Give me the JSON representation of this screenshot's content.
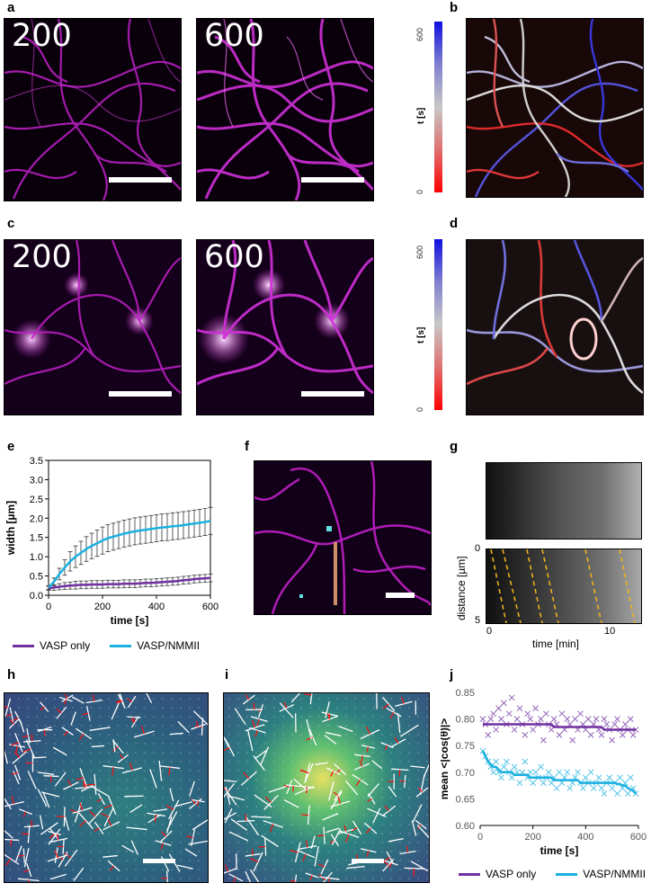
{
  "panels": {
    "a": {
      "label": "a",
      "left_time": "200",
      "right_time": "600"
    },
    "b": {
      "label": "b",
      "cbar_max": "600",
      "cbar_min": "0",
      "cbar_label": "t [s]"
    },
    "c": {
      "label": "c",
      "left_time": "200",
      "right_time": "600"
    },
    "d": {
      "label": "d",
      "cbar_max": "600",
      "cbar_min": "0",
      "cbar_label": "t [s]"
    },
    "e": {
      "label": "e"
    },
    "f": {
      "label": "f"
    },
    "g": {
      "label": "g",
      "ylabel": "distance [µm]",
      "xlabel": "time [min]",
      "yticks": [
        "0",
        "5"
      ],
      "xticks": [
        "0",
        "10"
      ]
    },
    "h": {
      "label": "h"
    },
    "i": {
      "label": "i"
    },
    "j": {
      "label": "j"
    }
  },
  "legend_e": [
    {
      "name": "VASP only",
      "color": "#7030a0"
    },
    {
      "name": "VASP/NMMII",
      "color": "#1ab0e0"
    }
  ],
  "legend_j": [
    {
      "name": "VASP only",
      "color": "#7030a0"
    },
    {
      "name": "VASP/NMMII",
      "color": "#1ab0e0"
    }
  ],
  "chart_data": [
    {
      "id": "e",
      "type": "line",
      "xlabel": "time [s]",
      "ylabel": "width [µm]",
      "xlim": [
        0,
        600
      ],
      "ylim": [
        0,
        3.5
      ],
      "xticks": [
        0,
        200,
        400,
        600
      ],
      "yticks": [
        0.0,
        0.5,
        1.0,
        1.5,
        2.0,
        2.5,
        3.0,
        3.5
      ],
      "ytick_labels": [
        "0.0",
        "0.5",
        "1.0",
        "1.5",
        "2.0",
        "2.5",
        "3.0",
        "3.5"
      ],
      "series": [
        {
          "name": "VASP only",
          "color": "#7030a0",
          "x": [
            0,
            20,
            40,
            60,
            80,
            100,
            120,
            140,
            160,
            180,
            200,
            220,
            240,
            260,
            280,
            300,
            320,
            340,
            360,
            380,
            400,
            420,
            440,
            460,
            480,
            500,
            520,
            540,
            560,
            580,
            600
          ],
          "y": [
            0.18,
            0.2,
            0.22,
            0.24,
            0.25,
            0.26,
            0.27,
            0.27,
            0.28,
            0.28,
            0.28,
            0.29,
            0.29,
            0.29,
            0.3,
            0.3,
            0.3,
            0.31,
            0.32,
            0.32,
            0.33,
            0.34,
            0.35,
            0.36,
            0.37,
            0.39,
            0.4,
            0.42,
            0.43,
            0.44,
            0.45
          ],
          "err": [
            0.05,
            0.07,
            0.08,
            0.09,
            0.09,
            0.1,
            0.1,
            0.1,
            0.1,
            0.1,
            0.1,
            0.1,
            0.1,
            0.1,
            0.1,
            0.1,
            0.1,
            0.1,
            0.1,
            0.1,
            0.1,
            0.1,
            0.1,
            0.1,
            0.1,
            0.1,
            0.1,
            0.1,
            0.1,
            0.1,
            0.1
          ]
        },
        {
          "name": "VASP/NMMII",
          "color": "#1ab0e0",
          "x": [
            0,
            20,
            40,
            60,
            80,
            100,
            120,
            140,
            160,
            180,
            200,
            220,
            240,
            260,
            280,
            300,
            320,
            340,
            360,
            380,
            400,
            420,
            440,
            460,
            480,
            500,
            520,
            540,
            560,
            580,
            600
          ],
          "y": [
            0.2,
            0.35,
            0.55,
            0.72,
            0.88,
            1.0,
            1.1,
            1.2,
            1.28,
            1.35,
            1.42,
            1.48,
            1.52,
            1.56,
            1.6,
            1.63,
            1.66,
            1.68,
            1.7,
            1.72,
            1.74,
            1.76,
            1.77,
            1.79,
            1.8,
            1.82,
            1.84,
            1.86,
            1.88,
            1.9,
            1.93
          ],
          "err": [
            0.05,
            0.1,
            0.15,
            0.2,
            0.25,
            0.28,
            0.3,
            0.32,
            0.33,
            0.34,
            0.35,
            0.35,
            0.35,
            0.35,
            0.35,
            0.35,
            0.35,
            0.35,
            0.35,
            0.35,
            0.35,
            0.35,
            0.35,
            0.35,
            0.35,
            0.35,
            0.35,
            0.35,
            0.35,
            0.35,
            0.35
          ]
        }
      ]
    },
    {
      "id": "j",
      "type": "scatter",
      "xlabel": "time [s]",
      "ylabel": "mean <|cos(θ)|>",
      "xlim": [
        0,
        600
      ],
      "ylim": [
        0.6,
        0.85
      ],
      "xticks": [
        0,
        200,
        400,
        600
      ],
      "yticks": [
        0.6,
        0.65,
        0.7,
        0.75,
        0.8,
        0.85
      ],
      "ytick_labels": [
        "0.60",
        "0.65",
        "0.70",
        "0.75",
        "0.80",
        "0.85"
      ],
      "series": [
        {
          "name": "VASP only",
          "color": "#7030a0",
          "x": [
            10,
            20,
            30,
            40,
            50,
            60,
            70,
            80,
            90,
            100,
            110,
            120,
            130,
            140,
            150,
            160,
            170,
            180,
            190,
            200,
            210,
            220,
            230,
            240,
            250,
            260,
            270,
            280,
            290,
            300,
            310,
            320,
            330,
            340,
            350,
            360,
            370,
            380,
            390,
            400,
            410,
            420,
            430,
            440,
            450,
            460,
            470,
            480,
            490,
            500,
            510,
            520,
            530,
            540,
            550,
            560,
            570,
            580,
            590
          ],
          "y": [
            0.8,
            0.79,
            0.77,
            0.8,
            0.81,
            0.78,
            0.82,
            0.8,
            0.83,
            0.79,
            0.81,
            0.84,
            0.78,
            0.8,
            0.82,
            0.79,
            0.77,
            0.81,
            0.8,
            0.78,
            0.82,
            0.79,
            0.8,
            0.76,
            0.81,
            0.79,
            0.78,
            0.8,
            0.79,
            0.77,
            0.81,
            0.78,
            0.8,
            0.79,
            0.76,
            0.8,
            0.78,
            0.81,
            0.79,
            0.78,
            0.8,
            0.77,
            0.79,
            0.8,
            0.78,
            0.77,
            0.8,
            0.79,
            0.78,
            0.76,
            0.79,
            0.8,
            0.78,
            0.77,
            0.79,
            0.78,
            0.8,
            0.77,
            0.78
          ],
          "trend": [
            0.79,
            0.79,
            0.79,
            0.79,
            0.79,
            0.79,
            0.79,
            0.79,
            0.79,
            0.79,
            0.79,
            0.79,
            0.79,
            0.79,
            0.79,
            0.79,
            0.79,
            0.79,
            0.79,
            0.79,
            0.79,
            0.79,
            0.79,
            0.79,
            0.79,
            0.79,
            0.79,
            0.785,
            0.785,
            0.785,
            0.785,
            0.785,
            0.785,
            0.785,
            0.785,
            0.785,
            0.785,
            0.785,
            0.785,
            0.785,
            0.785,
            0.785,
            0.785,
            0.785,
            0.785,
            0.785,
            0.78,
            0.78,
            0.78,
            0.78,
            0.78,
            0.78,
            0.78,
            0.78,
            0.78,
            0.78,
            0.78,
            0.78,
            0.78
          ]
        },
        {
          "name": "VASP/NMMII",
          "color": "#1ab0e0",
          "x": [
            10,
            20,
            30,
            40,
            50,
            60,
            70,
            80,
            90,
            100,
            110,
            120,
            130,
            140,
            150,
            160,
            170,
            180,
            190,
            200,
            210,
            220,
            230,
            240,
            250,
            260,
            270,
            280,
            290,
            300,
            310,
            320,
            330,
            340,
            350,
            360,
            370,
            380,
            390,
            400,
            410,
            420,
            430,
            440,
            450,
            460,
            470,
            480,
            490,
            500,
            510,
            520,
            530,
            540,
            550,
            560,
            570,
            580,
            590
          ],
          "y": [
            0.74,
            0.73,
            0.72,
            0.71,
            0.7,
            0.72,
            0.7,
            0.69,
            0.71,
            0.72,
            0.7,
            0.69,
            0.71,
            0.7,
            0.68,
            0.7,
            0.72,
            0.69,
            0.7,
            0.68,
            0.7,
            0.69,
            0.71,
            0.68,
            0.69,
            0.7,
            0.68,
            0.69,
            0.67,
            0.7,
            0.68,
            0.69,
            0.7,
            0.67,
            0.68,
            0.69,
            0.7,
            0.68,
            0.67,
            0.69,
            0.68,
            0.7,
            0.67,
            0.68,
            0.69,
            0.67,
            0.66,
            0.68,
            0.69,
            0.67,
            0.68,
            0.66,
            0.69,
            0.67,
            0.68,
            0.66,
            0.69,
            0.67,
            0.66
          ],
          "trend": [
            0.74,
            0.73,
            0.72,
            0.715,
            0.71,
            0.71,
            0.705,
            0.7,
            0.7,
            0.7,
            0.7,
            0.7,
            0.695,
            0.695,
            0.695,
            0.695,
            0.695,
            0.695,
            0.69,
            0.69,
            0.69,
            0.69,
            0.69,
            0.69,
            0.69,
            0.69,
            0.69,
            0.685,
            0.685,
            0.685,
            0.685,
            0.685,
            0.685,
            0.685,
            0.685,
            0.685,
            0.685,
            0.68,
            0.68,
            0.68,
            0.68,
            0.68,
            0.68,
            0.68,
            0.68,
            0.68,
            0.68,
            0.68,
            0.68,
            0.68,
            0.68,
            0.678,
            0.678,
            0.675,
            0.675,
            0.67,
            0.668,
            0.665,
            0.66
          ]
        }
      ]
    }
  ]
}
